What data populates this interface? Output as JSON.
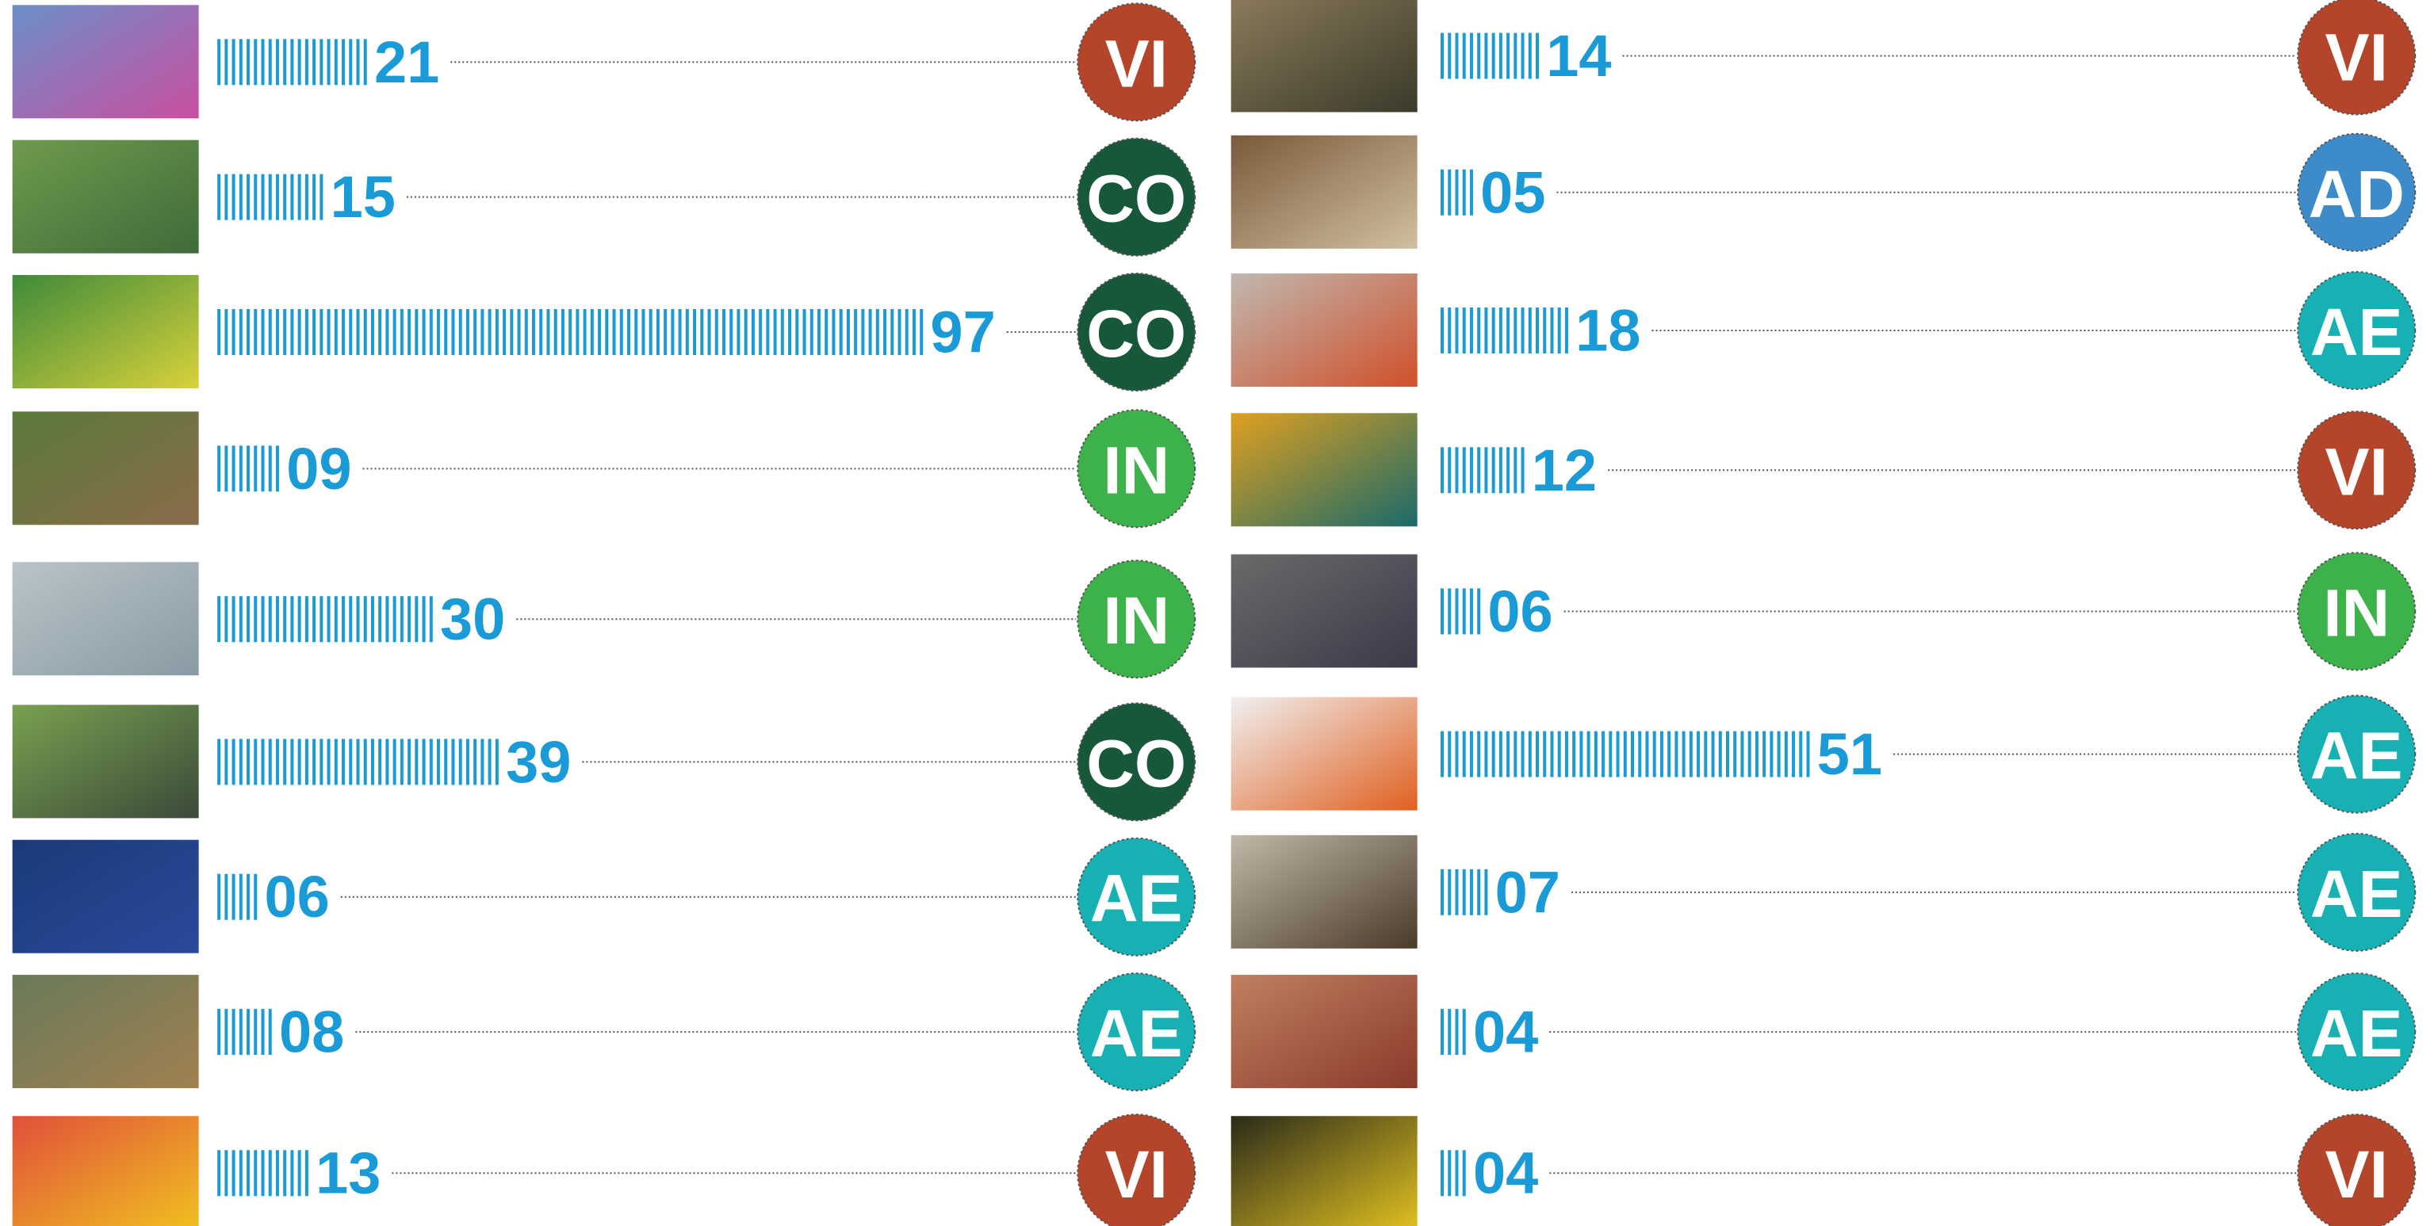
{
  "badge_colors": {
    "VI": "#b4442a",
    "CO": "#17573a",
    "IN": "#3db24b",
    "AE": "#18b1b3",
    "AD": "#3d8bc9"
  },
  "columns": [
    {
      "items": [
        {
          "value": 21,
          "value_label": "21",
          "badge": "VI"
        },
        {
          "value": 15,
          "value_label": "15",
          "badge": "CO"
        },
        {
          "value": 97,
          "value_label": "97",
          "badge": "CO"
        },
        {
          "value": 9,
          "value_label": "09",
          "badge": "IN"
        },
        {
          "value": 30,
          "value_label": "30",
          "badge": "IN"
        },
        {
          "value": 39,
          "value_label": "39",
          "badge": "CO"
        },
        {
          "value": 6,
          "value_label": "06",
          "badge": "AE"
        },
        {
          "value": 8,
          "value_label": "08",
          "badge": "AE"
        },
        {
          "value": 13,
          "value_label": "13",
          "badge": "VI"
        }
      ]
    },
    {
      "items": [
        {
          "value": 14,
          "value_label": "14",
          "badge": "VI"
        },
        {
          "value": 5,
          "value_label": "05",
          "badge": "AD"
        },
        {
          "value": 18,
          "value_label": "18",
          "badge": "AE"
        },
        {
          "value": 12,
          "value_label": "12",
          "badge": "VI"
        },
        {
          "value": 6,
          "value_label": "06",
          "badge": "IN"
        },
        {
          "value": 51,
          "value_label": "51",
          "badge": "AE"
        },
        {
          "value": 7,
          "value_label": "07",
          "badge": "AE"
        },
        {
          "value": 4,
          "value_label": "04",
          "badge": "AE"
        },
        {
          "value": 4,
          "value_label": "04",
          "badge": "VI"
        }
      ]
    }
  ]
}
